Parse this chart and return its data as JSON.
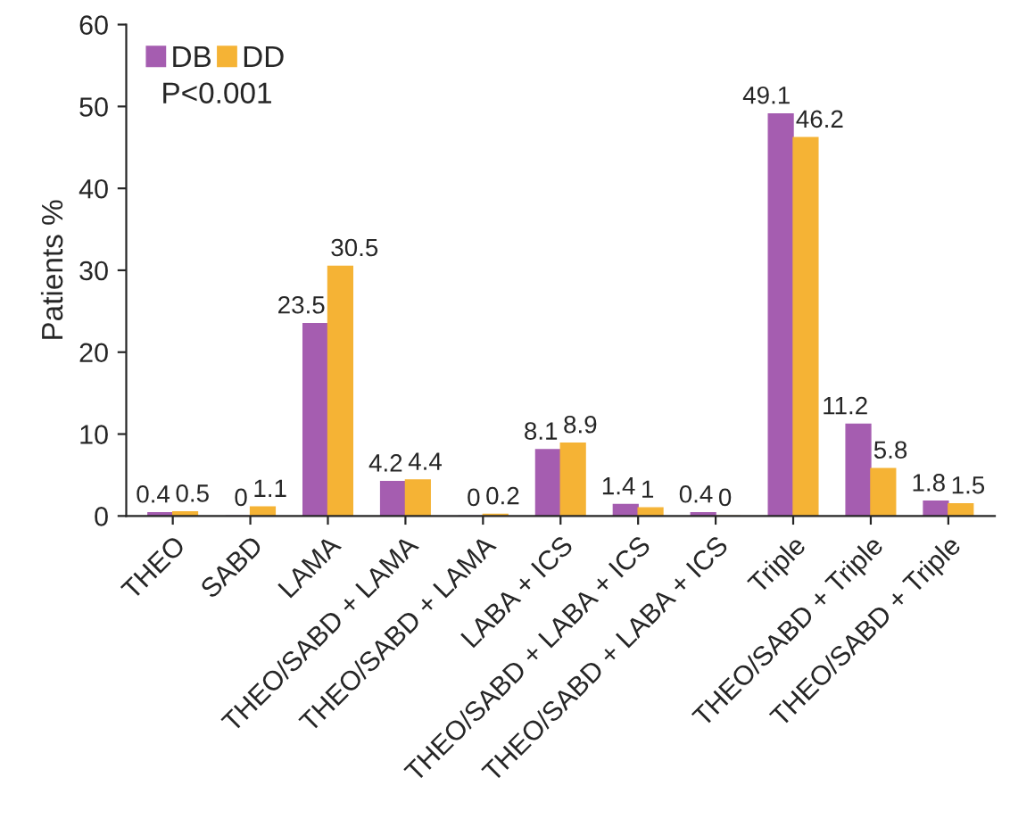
{
  "chart_data": {
    "type": "bar",
    "ylabel": "Patients %",
    "categories": [
      "THEO",
      "SABD",
      "LAMA",
      "THEO/SABD + LAMA",
      "THEO/SABD + LAMA",
      "LABA + ICS",
      "THEO/SABD + LABA + ICS",
      "THEO/SABD + LABA + ICS",
      "Triple",
      "THEO/SABD + Triple",
      "THEO/SABD + Triple"
    ],
    "series": [
      {
        "name": "DB",
        "color": "#a55db0",
        "values": [
          0.4,
          0,
          23.5,
          4.2,
          0,
          8.1,
          1.4,
          0.4,
          49.1,
          11.2,
          1.8
        ]
      },
      {
        "name": "DD",
        "color": "#f5b335",
        "values": [
          0.5,
          1.1,
          30.5,
          4.4,
          0.2,
          8.9,
          1,
          0,
          46.2,
          5.8,
          1.5
        ]
      }
    ],
    "ylim": [
      0,
      60
    ],
    "yticks": [
      0,
      10,
      20,
      30,
      40,
      50,
      60
    ],
    "data_labels": true,
    "legend": "top left",
    "grid": false,
    "annotations": [
      "P<0.001"
    ]
  }
}
